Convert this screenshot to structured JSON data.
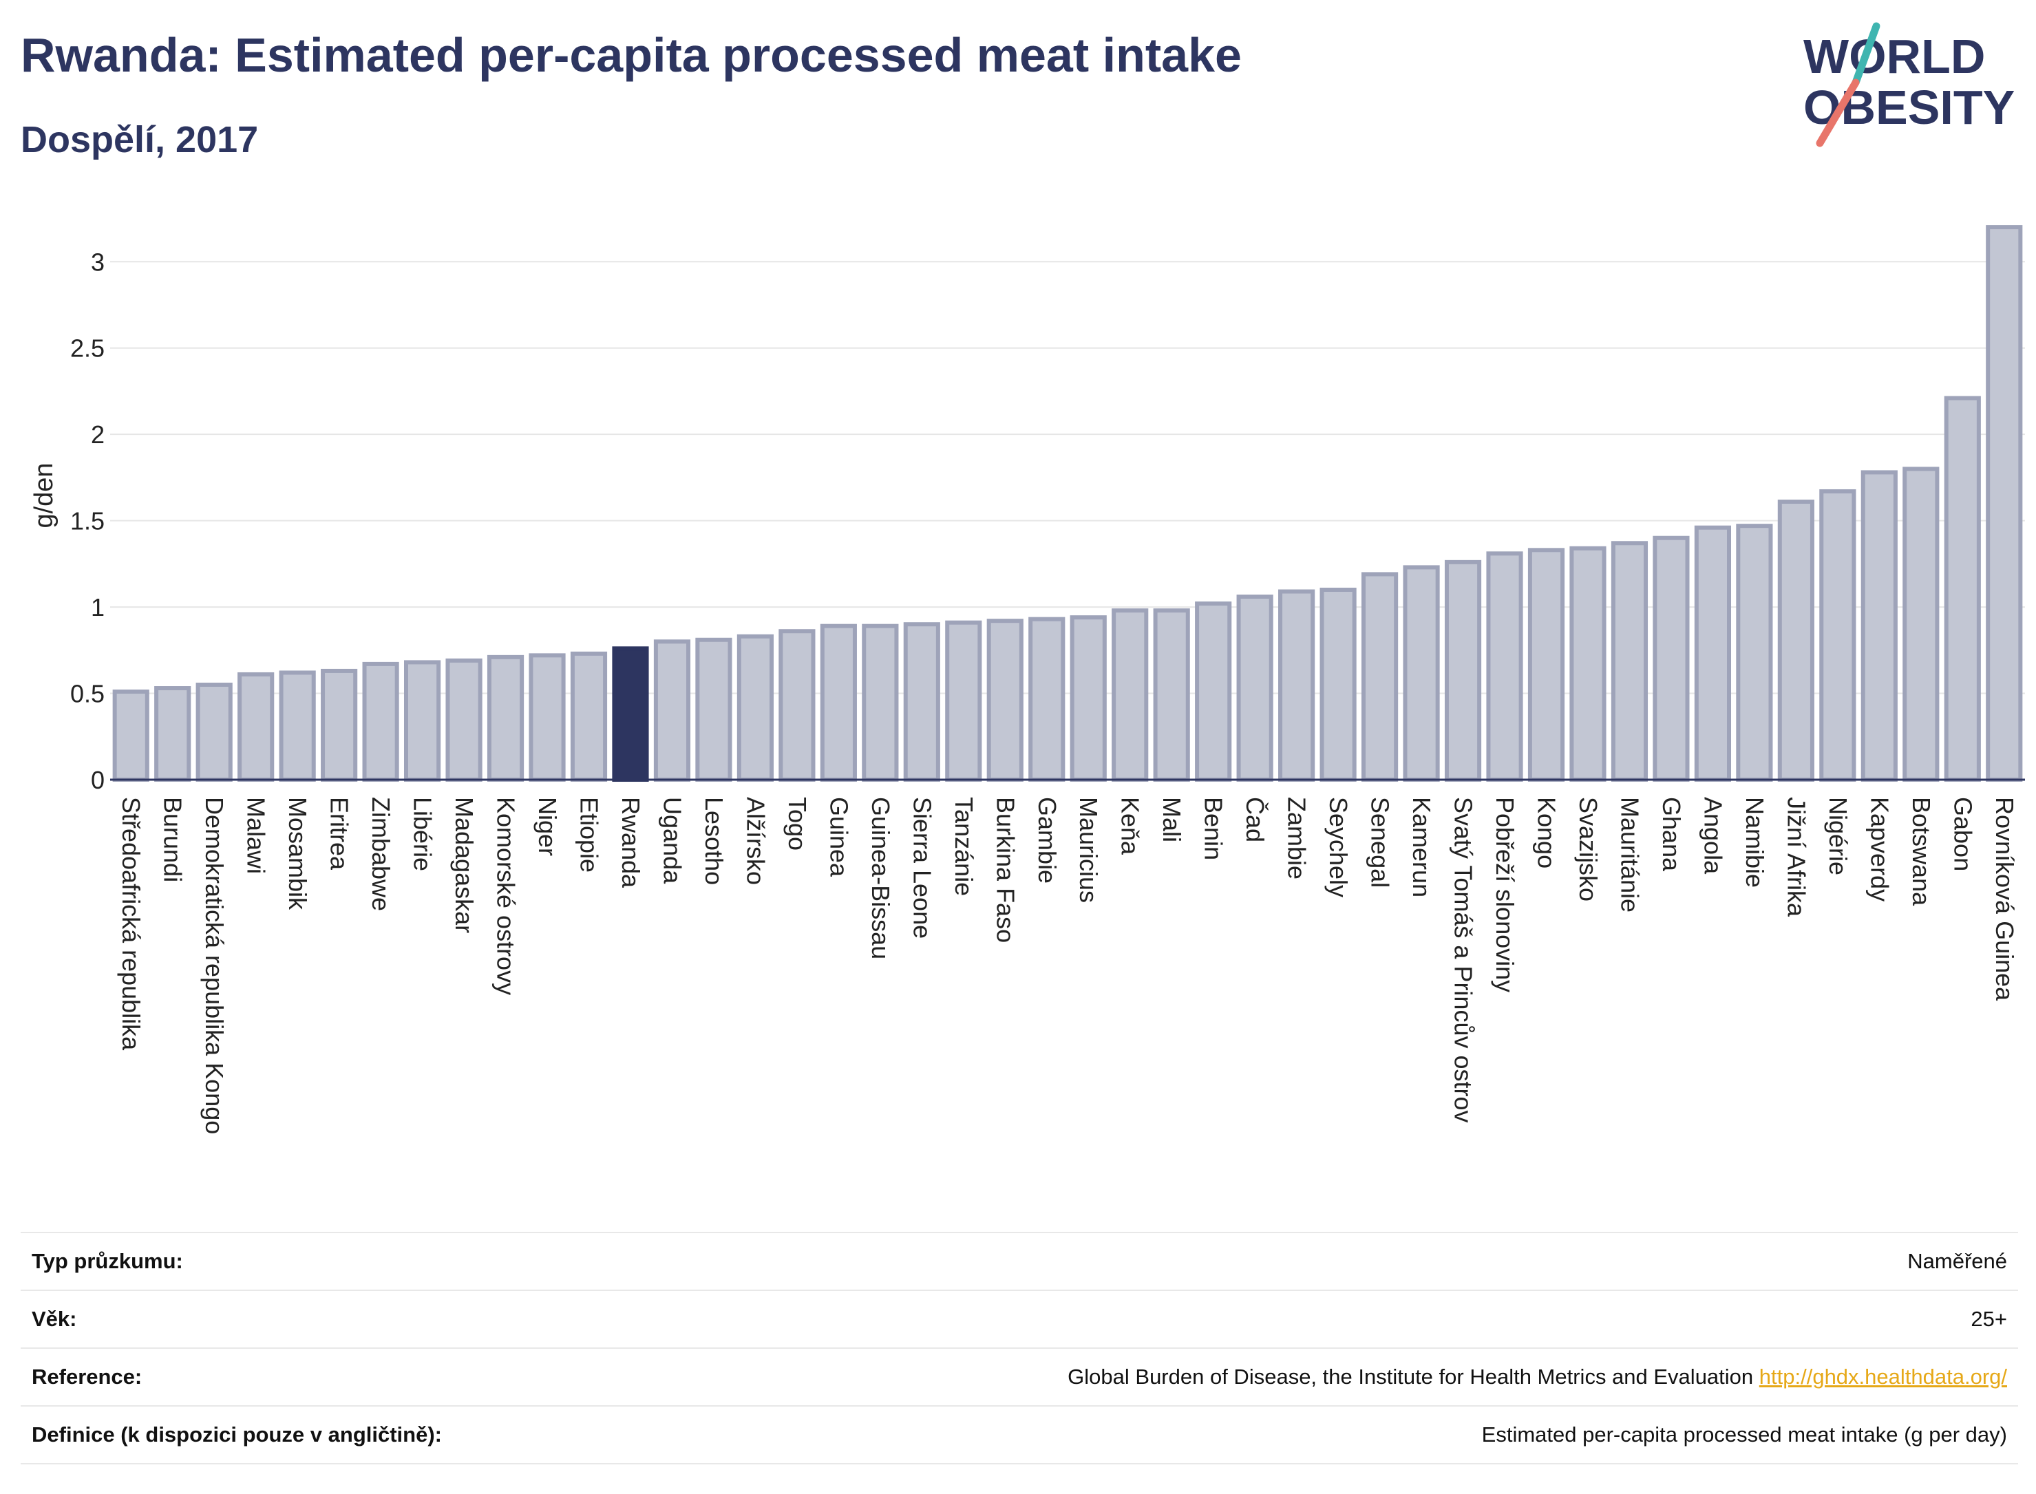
{
  "header": {
    "title": "Rwanda: Estimated per-capita processed meat intake",
    "subtitle": "Dospělí, 2017"
  },
  "logo": {
    "line1": "WORLD",
    "line2": "OBESITY",
    "text_color": "#2d3560",
    "slash_teal": "#3fb5b0",
    "slash_coral": "#e8756a"
  },
  "colors": {
    "bar_fill": "#c2c6d3",
    "bar_stroke": "#9ea3b9",
    "highlight_fill": "#2d3560",
    "grid": "#e6e6e6",
    "axis": "#2d3560"
  },
  "chart_data": {
    "type": "bar",
    "title": "Rwanda: Estimated per-capita processed meat intake",
    "subtitle": "Dospělí, 2017",
    "xlabel": "",
    "ylabel": "g/den",
    "ylim": [
      0,
      3.3
    ],
    "yticks": [
      0,
      0.5,
      1,
      1.5,
      2,
      2.5,
      3
    ],
    "ytick_labels": [
      "0",
      "0.5",
      "1",
      "1.5",
      "2",
      "2.5",
      "3"
    ],
    "grid": true,
    "highlight": "Rwanda",
    "categories": [
      "Středoafrická republika",
      "Burundi",
      "Demokratická republika Kongo",
      "Malawi",
      "Mosambik",
      "Eritrea",
      "Zimbabwe",
      "Libérie",
      "Madagaskar",
      "Komorské ostrovy",
      "Niger",
      "Etiopie",
      "Rwanda",
      "Uganda",
      "Lesotho",
      "Alžírsko",
      "Togo",
      "Guinea",
      "Guinea-Bissau",
      "Sierra Leone",
      "Tanzánie",
      "Burkina Faso",
      "Gambie",
      "Mauricius",
      "Keňa",
      "Mali",
      "Benin",
      "Čad",
      "Zambie",
      "Seychely",
      "Senegal",
      "Kamerun",
      "Svatý Tomáš a Princův ostrov",
      "Pobřeží slonoviny",
      "Kongo",
      "Svazijsko",
      "Mauritánie",
      "Ghana",
      "Angola",
      "Namibie",
      "Jižní Afrika",
      "Nigérie",
      "Kapverdy",
      "Botswana",
      "Gabon",
      "Rovníková Guinea"
    ],
    "values": [
      0.51,
      0.53,
      0.55,
      0.61,
      0.62,
      0.63,
      0.67,
      0.68,
      0.69,
      0.71,
      0.72,
      0.73,
      0.76,
      0.8,
      0.81,
      0.83,
      0.86,
      0.89,
      0.89,
      0.9,
      0.91,
      0.92,
      0.93,
      0.94,
      0.98,
      0.98,
      1.02,
      1.06,
      1.09,
      1.1,
      1.19,
      1.23,
      1.26,
      1.31,
      1.33,
      1.34,
      1.37,
      1.4,
      1.46,
      1.47,
      1.61,
      1.67,
      1.78,
      1.8,
      2.21,
      3.2
    ]
  },
  "info": {
    "rows": [
      {
        "label": "Typ průzkumu:",
        "value": "Naměřené"
      },
      {
        "label": "Věk:",
        "value": "25+"
      },
      {
        "label": "Reference:",
        "value": "Global Burden of Disease, the Institute for Health Metrics and Evaluation",
        "link": "http://ghdx.healthdata.org/"
      },
      {
        "label": "Definice (k dispozici pouze v angličtině):",
        "value": "Estimated per-capita processed meat intake (g per day)"
      }
    ]
  }
}
